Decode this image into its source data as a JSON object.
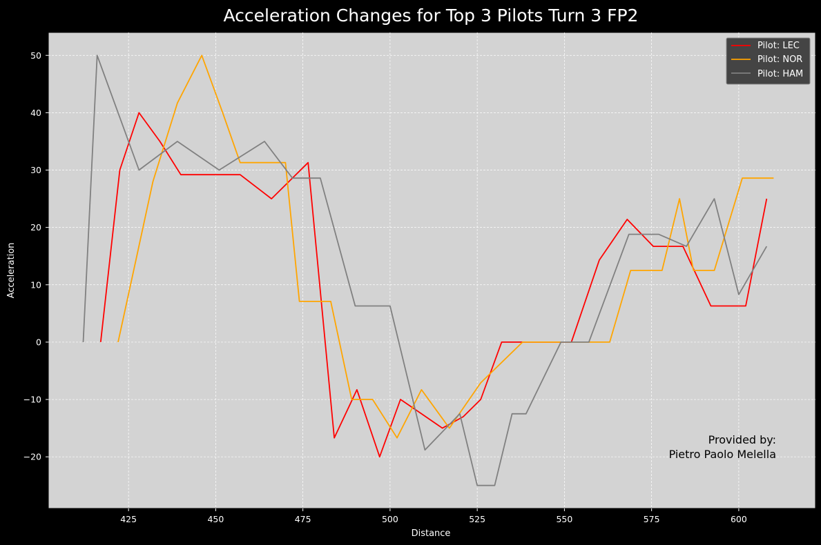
{
  "chart_data": {
    "type": "line",
    "title": "Acceleration Changes for Top 3 Pilots Turn 3 FP2",
    "xlabel": "Distance",
    "ylabel": "Acceleration",
    "xlim": [
      402,
      622
    ],
    "ylim": [
      -29,
      54
    ],
    "xticks": [
      425,
      450,
      475,
      500,
      525,
      550,
      575,
      600
    ],
    "yticks": [
      -20,
      -10,
      0,
      10,
      20,
      30,
      40,
      50
    ],
    "ytick_labels": [
      "−20",
      "−10",
      "0",
      "10",
      "20",
      "30",
      "40",
      "50"
    ],
    "grid": true,
    "legend_position": "top-right",
    "series": [
      {
        "name": "Pilot: LEC",
        "color": "#ff0000",
        "points": [
          [
            417,
            0
          ],
          [
            422.5,
            30
          ],
          [
            428,
            40
          ],
          [
            434,
            35
          ],
          [
            440,
            29.2
          ],
          [
            446,
            29.2
          ],
          [
            452,
            29.2
          ],
          [
            457,
            29.2
          ],
          [
            466,
            25
          ],
          [
            476.5,
            31.3
          ],
          [
            484,
            -16.7
          ],
          [
            490.5,
            -8.3
          ],
          [
            497,
            -20
          ],
          [
            503,
            -10
          ],
          [
            509,
            -12.5
          ],
          [
            515,
            -15
          ],
          [
            521,
            -13
          ],
          [
            526,
            -10
          ],
          [
            532,
            0
          ],
          [
            538,
            0
          ],
          [
            545,
            0
          ],
          [
            552,
            0
          ],
          [
            560,
            14.3
          ],
          [
            568,
            21.4
          ],
          [
            575.5,
            16.7
          ],
          [
            580,
            16.7
          ],
          [
            584,
            16.7
          ],
          [
            592,
            6.3
          ],
          [
            597,
            6.3
          ],
          [
            602,
            6.3
          ],
          [
            608,
            25
          ]
        ]
      },
      {
        "name": "Pilot: NOR",
        "color": "#ffa500",
        "points": [
          [
            422,
            0
          ],
          [
            427,
            14
          ],
          [
            432,
            28
          ],
          [
            439,
            41.7
          ],
          [
            446,
            50
          ],
          [
            452,
            40
          ],
          [
            457,
            31.3
          ],
          [
            465,
            31.3
          ],
          [
            470,
            31.3
          ],
          [
            474,
            7.1
          ],
          [
            479,
            7.1
          ],
          [
            483,
            7.1
          ],
          [
            489,
            -10
          ],
          [
            495,
            -10
          ],
          [
            502,
            -16.7
          ],
          [
            509,
            -8.3
          ],
          [
            517,
            -15
          ],
          [
            526,
            -7.1
          ],
          [
            538,
            0
          ],
          [
            550,
            0
          ],
          [
            563,
            0
          ],
          [
            569,
            12.5
          ],
          [
            578,
            12.5
          ],
          [
            583,
            25
          ],
          [
            587,
            12.5
          ],
          [
            593,
            12.5
          ],
          [
            601,
            28.6
          ],
          [
            610,
            28.6
          ]
        ]
      },
      {
        "name": "Pilot: HAM",
        "color": "#808080",
        "points": [
          [
            412,
            0
          ],
          [
            416,
            50
          ],
          [
            428,
            30
          ],
          [
            439,
            35
          ],
          [
            451,
            30
          ],
          [
            464,
            35
          ],
          [
            472,
            28.6
          ],
          [
            480,
            28.6
          ],
          [
            490,
            6.3
          ],
          [
            500,
            6.3
          ],
          [
            510,
            -18.8
          ],
          [
            520,
            -12.5
          ],
          [
            525,
            -25
          ],
          [
            530,
            -25
          ],
          [
            535,
            -12.5
          ],
          [
            539,
            -12.5
          ],
          [
            549,
            0
          ],
          [
            557,
            0
          ],
          [
            568.5,
            18.8
          ],
          [
            577,
            18.8
          ],
          [
            585,
            16.7
          ],
          [
            593,
            25
          ],
          [
            600,
            8.3
          ],
          [
            608,
            16.7
          ]
        ]
      }
    ],
    "annotation": {
      "line1": "Provided by:",
      "line2": "Pietro Paolo Melella"
    }
  }
}
